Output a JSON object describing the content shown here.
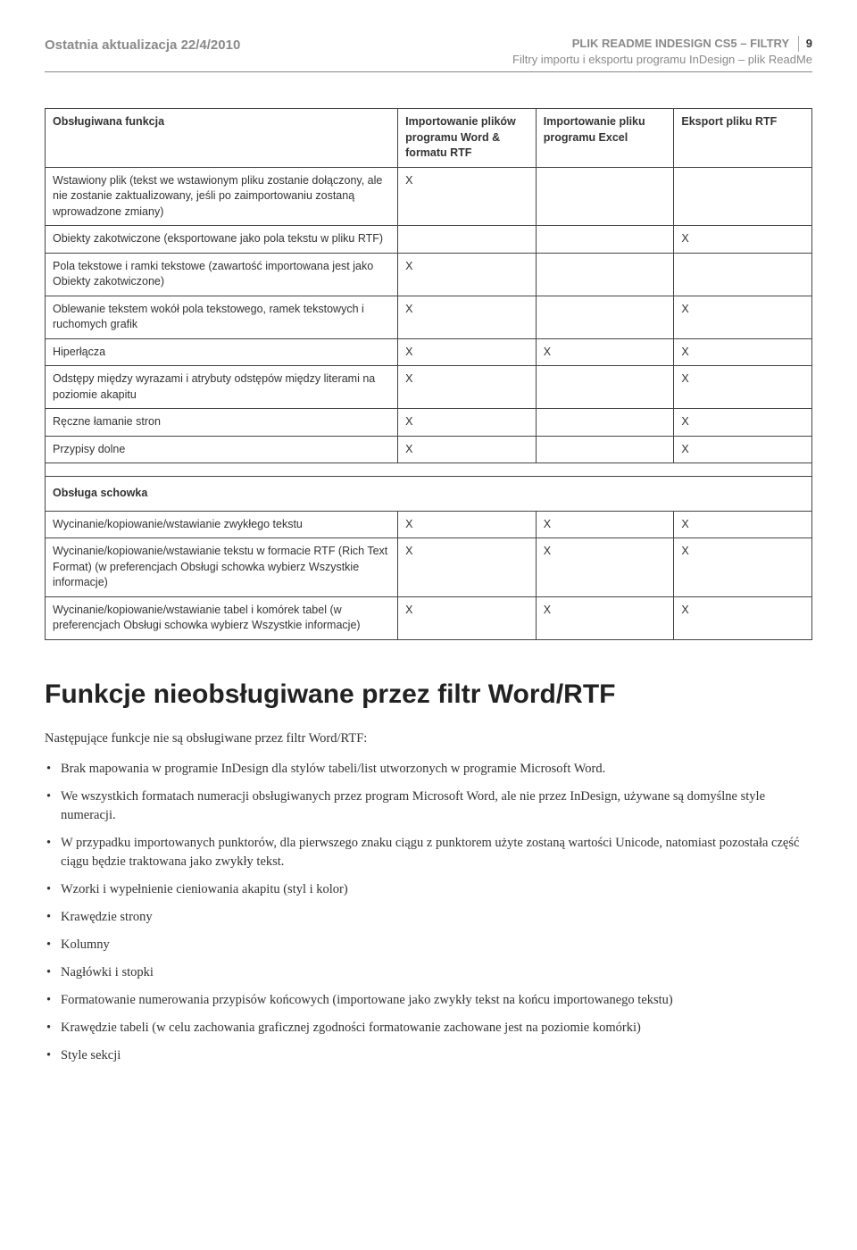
{
  "header": {
    "last_update": "Ostatnia aktualizacja 22/4/2010",
    "title_top": "PLIK README INDESIGN CS5 – FILTRY",
    "title_sub": "Filtry importu i eksportu programu InDesign – plik ReadMe",
    "page_number": "9"
  },
  "table": {
    "columns": [
      "Obsługiwana funkcja",
      "Importowanie plików programu Word & formatu RTF",
      "Importowanie pliku programu Excel",
      "Eksport pliku RTF"
    ],
    "rows": [
      {
        "label": "Wstawiony plik (tekst we wstawionym pliku zostanie dołączony, ale nie zostanie zaktualizowany, jeśli po zaimportowaniu zostaną wprowadzone zmiany)",
        "c1": "X",
        "c2": "",
        "c3": ""
      },
      {
        "label": "Obiekty zakotwiczone (eksportowane jako pola tekstu w pliku RTF)",
        "c1": "",
        "c2": "",
        "c3": "X"
      },
      {
        "label": "Pola tekstowe i ramki tekstowe (zawartość importowana jest jako Obiekty zakotwiczone)",
        "c1": "X",
        "c2": "",
        "c3": ""
      },
      {
        "label": "Oblewanie tekstem wokół pola tekstowego, ramek tekstowych i ruchomych grafik",
        "c1": "X",
        "c2": "",
        "c3": "X"
      },
      {
        "label": "Hiperłącza",
        "c1": "X",
        "c2": "X",
        "c3": "X"
      },
      {
        "label": "Odstępy między wyrazami i atrybuty odstępów między literami na poziomie akapitu",
        "c1": "X",
        "c2": "",
        "c3": "X"
      },
      {
        "label": "Ręczne łamanie stron",
        "c1": "X",
        "c2": "",
        "c3": "X"
      },
      {
        "label": "Przypisy dolne",
        "c1": "X",
        "c2": "",
        "c3": "X"
      }
    ],
    "section2_label": "Obsługa schowka",
    "rows2": [
      {
        "label": "Wycinanie/kopiowanie/wstawianie zwykłego tekstu",
        "c1": "X",
        "c2": "X",
        "c3": "X"
      },
      {
        "label": "Wycinanie/kopiowanie/wstawianie tekstu w formacie RTF (Rich Text Format) (w preferencjach Obsługi schowka wybierz Wszystkie informacje)",
        "c1": "X",
        "c2": "X",
        "c3": "X"
      },
      {
        "label": "Wycinanie/kopiowanie/wstawianie tabel i komórek tabel (w preferencjach Obsługi schowka wybierz Wszystkie informacje)",
        "c1": "X",
        "c2": "X",
        "c3": "X"
      }
    ]
  },
  "section": {
    "heading": "Funkcje nieobsługiwane przez filtr Word/RTF",
    "intro": "Następujące funkcje nie są obsługiwane przez filtr Word/RTF:",
    "bullets": [
      "Brak mapowania w programie InDesign dla stylów tabeli/list utworzonych w programie Microsoft Word.",
      "We wszystkich formatach numeracji obsługiwanych przez program Microsoft Word, ale nie przez InDesign, używane są domyślne style numeracji.",
      "W przypadku importowanych punktorów, dla pierwszego znaku ciągu z punktorem użyte zostaną wartości Unicode, natomiast pozostała część ciągu będzie traktowana jako zwykły tekst.",
      "Wzorki i wypełnienie cieniowania akapitu (styl i kolor)",
      "Krawędzie strony",
      "Kolumny",
      "Nagłówki i stopki",
      "Formatowanie numerowania przypisów końcowych (importowane jako zwykły tekst na końcu importowanego tekstu)",
      "Krawędzie tabeli (w celu zachowania graficznej zgodności formatowanie zachowane jest na poziomie komórki)",
      "Style sekcji"
    ]
  }
}
